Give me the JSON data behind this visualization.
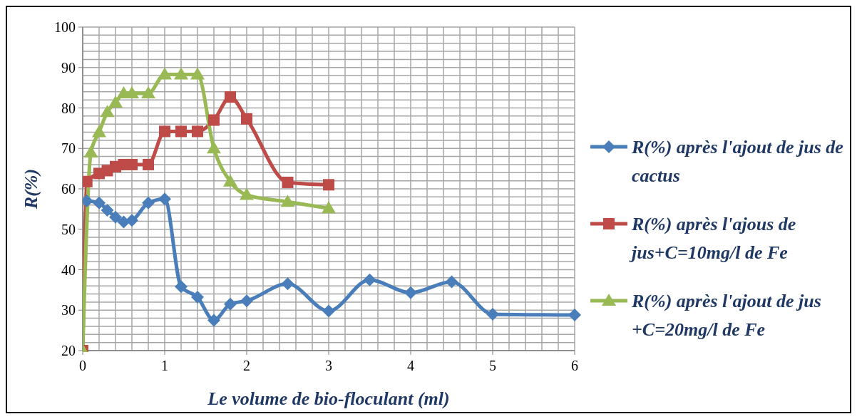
{
  "chart_data": {
    "type": "line",
    "xlabel": "Le volume de bio-floculant (ml)",
    "ylabel": "R(%)",
    "xlim": [
      0,
      6
    ],
    "ylim": [
      20,
      100
    ],
    "xticks": [
      0,
      {
        "value": 0.2,
        "label": null
      },
      {
        "value": 0.4,
        "label": null
      },
      {
        "value": 0.6,
        "label": null
      },
      {
        "value": 0.8,
        "label": null
      },
      1,
      {
        "value": 1.2,
        "label": null
      },
      {
        "value": 1.4,
        "label": null
      },
      {
        "value": 1.6,
        "label": null
      },
      {
        "value": 1.8,
        "label": null
      },
      2,
      {
        "value": 2.2,
        "label": null
      },
      {
        "value": 2.4,
        "label": null
      },
      {
        "value": 2.6,
        "label": null
      },
      {
        "value": 2.8,
        "label": null
      },
      3,
      {
        "value": 3.2,
        "label": null
      },
      {
        "value": 3.4,
        "label": null
      },
      {
        "value": 3.6,
        "label": null
      },
      {
        "value": 3.8,
        "label": null
      },
      4,
      {
        "value": 4.2,
        "label": null
      },
      {
        "value": 4.4,
        "label": null
      },
      {
        "value": 4.6,
        "label": null
      },
      {
        "value": 4.8,
        "label": null
      },
      5,
      {
        "value": 5.2,
        "label": null
      },
      {
        "value": 5.4,
        "label": null
      },
      {
        "value": 5.6,
        "label": null
      },
      {
        "value": 5.8,
        "label": null
      },
      6
    ],
    "yticks": [
      20,
      {
        "value": 22,
        "label": null
      },
      {
        "value": 24,
        "label": null
      },
      {
        "value": 26,
        "label": null
      },
      {
        "value": 28,
        "label": null
      },
      30,
      {
        "value": 32,
        "label": null
      },
      {
        "value": 34,
        "label": null
      },
      {
        "value": 36,
        "label": null
      },
      {
        "value": 38,
        "label": null
      },
      40,
      {
        "value": 42,
        "label": null
      },
      {
        "value": 44,
        "label": null
      },
      {
        "value": 46,
        "label": null
      },
      {
        "value": 48,
        "label": null
      },
      50,
      {
        "value": 52,
        "label": null
      },
      {
        "value": 54,
        "label": null
      },
      {
        "value": 56,
        "label": null
      },
      {
        "value": 58,
        "label": null
      },
      60,
      {
        "value": 62,
        "label": null
      },
      {
        "value": 64,
        "label": null
      },
      {
        "value": 66,
        "label": null
      },
      {
        "value": 68,
        "label": null
      },
      70,
      {
        "value": 72,
        "label": null
      },
      {
        "value": 74,
        "label": null
      },
      {
        "value": 76,
        "label": null
      },
      {
        "value": 78,
        "label": null
      },
      80,
      {
        "value": 82,
        "label": null
      },
      {
        "value": 84,
        "label": null
      },
      {
        "value": 86,
        "label": null
      },
      {
        "value": 88,
        "label": null
      },
      90,
      {
        "value": 92,
        "label": null
      },
      {
        "value": 94,
        "label": null
      },
      {
        "value": 96,
        "label": null
      },
      {
        "value": 98,
        "label": null
      },
      100
    ],
    "grid": true,
    "legend": "right",
    "series": [
      {
        "name": "R(%) après l'ajout de jus de cactus",
        "color": "#4a7ebb",
        "marker": "diamond",
        "x": [
          0,
          0.05,
          0.2,
          0.3,
          0.4,
          0.5,
          0.6,
          0.8,
          1,
          1.2,
          1.4,
          1.6,
          1.8,
          2,
          2.5,
          3,
          3.5,
          4,
          4.5,
          5,
          6
        ],
        "values": [
          20,
          57,
          56.5,
          54.7,
          53,
          51.8,
          52.2,
          56.5,
          57.5,
          35.8,
          33.2,
          27.5,
          31.5,
          32.3,
          36.5,
          29.8,
          37.5,
          34.3,
          37,
          29,
          28.8
        ]
      },
      {
        "name": "R(%) après l'ajous de jus+C=10mg/l de Fe",
        "color": "#be4b48",
        "marker": "square",
        "x": [
          0,
          0.05,
          0.2,
          0.3,
          0.4,
          0.5,
          0.6,
          0.8,
          1,
          1.2,
          1.4,
          1.6,
          1.8,
          2,
          2.5,
          3
        ],
        "values": [
          20,
          61.8,
          63.8,
          64.5,
          65.5,
          66,
          66,
          66,
          74.2,
          74.2,
          74.2,
          77,
          82.7,
          77.3,
          61.6,
          61
        ]
      },
      {
        "name": "R(%) après l'ajout de jus +C=20mg/l de Fe",
        "color": "#98b954",
        "marker": "triangle",
        "x": [
          0,
          0.1,
          0.2,
          0.3,
          0.4,
          0.5,
          0.6,
          0.8,
          1,
          1.2,
          1.4,
          1.6,
          1.8,
          2,
          2.5,
          3
        ],
        "values": [
          20,
          69,
          74,
          79,
          81.3,
          83.6,
          83.6,
          83.6,
          88.3,
          88.3,
          88.3,
          70,
          61.8,
          58.5,
          56.8,
          55.2
        ]
      }
    ]
  }
}
